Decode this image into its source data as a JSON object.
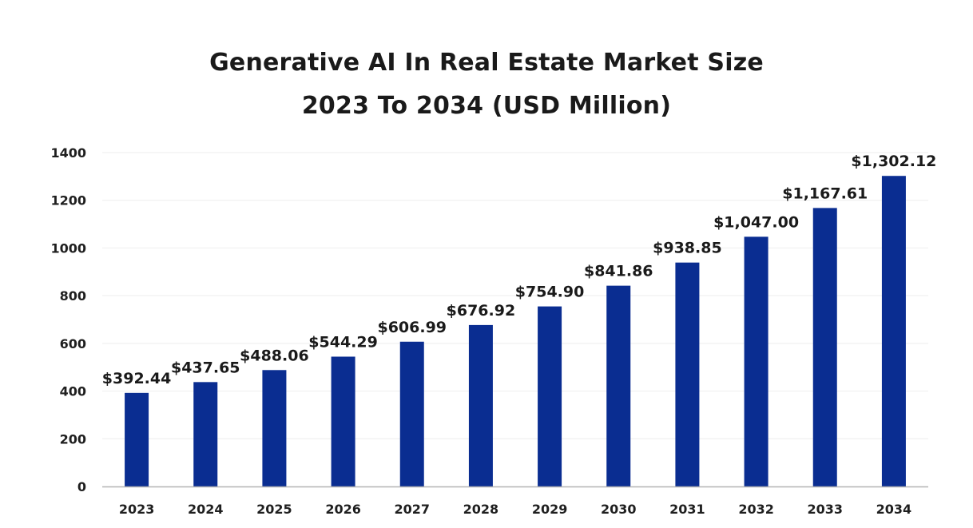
{
  "chart_data": {
    "type": "bar",
    "title_lines": [
      "Generative AI In Real Estate Market Size",
      "2023 To 2034 (USD Million)"
    ],
    "categories": [
      "2023",
      "2024",
      "2025",
      "2026",
      "2027",
      "2028",
      "2029",
      "2030",
      "2031",
      "2032",
      "2033",
      "2034"
    ],
    "values": [
      392.44,
      437.65,
      488.06,
      544.29,
      606.99,
      676.92,
      754.9,
      841.86,
      938.85,
      1047.0,
      1167.61,
      1302.12
    ],
    "data_labels": [
      "$392.44",
      "$437.65",
      "$488.06",
      "$544.29",
      "$606.99",
      "$676.92",
      "$754.90",
      "$841.86",
      "$938.85",
      "$1,047.00",
      "$1,167.61",
      "$1,302.12"
    ],
    "ylim": [
      0,
      1400
    ],
    "yticks": [
      0,
      200,
      400,
      600,
      800,
      1000,
      1200,
      1400
    ],
    "ytick_labels": [
      "0",
      "200",
      "400",
      "600",
      "800",
      "1000",
      "1200",
      "1400"
    ],
    "grid": true,
    "legend": "none",
    "bar_color": "#0a2d91",
    "grid_color": "#eeeeee",
    "axis_color": "#b3b3b3"
  }
}
